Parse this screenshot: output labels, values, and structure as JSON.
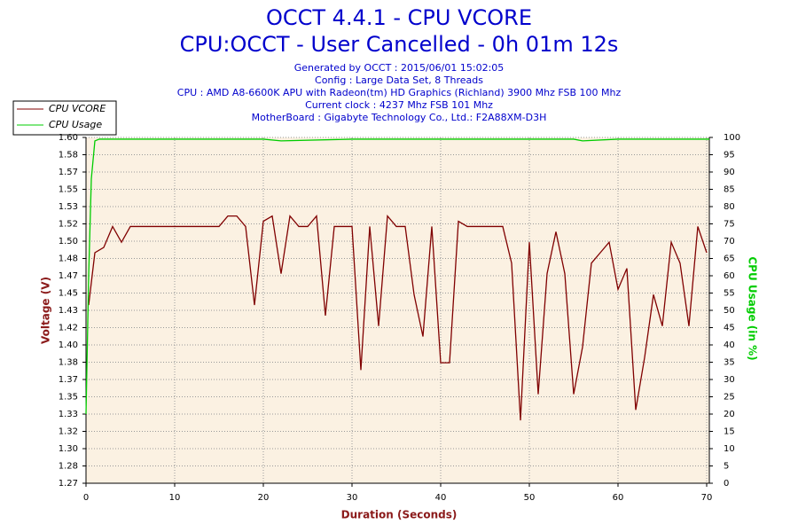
{
  "chart_data": {
    "type": "line",
    "title": [
      "OCCT 4.4.1 - CPU VCORE",
      "CPU:OCCT - User Cancelled - 0h 01m 12s"
    ],
    "subtitle": [
      "Generated by OCCT : 2015/06/01 15:02:05",
      "Config : Large Data Set, 8 Threads",
      "CPU : AMD A8-6600K APU with Radeon(tm) HD Graphics (Richland) 3900 Mhz FSB 100 Mhz",
      "Current clock : 4237 Mhz FSB 101 Mhz",
      "MotherBoard : Gigabyte Technology Co., Ltd.: F2A88XM-D3H"
    ],
    "xlabel": "Duration (Seconds)",
    "ylabel": "Voltage (V)",
    "y2label": "CPU Usage (in %)",
    "xlim": [
      0,
      70.3
    ],
    "xticks": [
      0,
      10,
      20,
      30,
      40,
      50,
      60,
      70
    ],
    "ylim": [
      1.27,
      1.6
    ],
    "yticks": [
      {
        "value": 1.27,
        "label": "1.27"
      },
      {
        "value": 1.2865,
        "label": "1.28"
      },
      {
        "value": 1.303,
        "label": "1.30"
      },
      {
        "value": 1.3195,
        "label": "1.32"
      },
      {
        "value": 1.336,
        "label": "1.33"
      },
      {
        "value": 1.3525,
        "label": "1.35"
      },
      {
        "value": 1.369,
        "label": "1.37"
      },
      {
        "value": 1.3855,
        "label": "1.38"
      },
      {
        "value": 1.402,
        "label": "1.40"
      },
      {
        "value": 1.4185,
        "label": "1.42"
      },
      {
        "value": 1.435,
        "label": "1.43"
      },
      {
        "value": 1.4515,
        "label": "1.45"
      },
      {
        "value": 1.468,
        "label": "1.47"
      },
      {
        "value": 1.4845,
        "label": "1.48"
      },
      {
        "value": 1.501,
        "label": "1.50"
      },
      {
        "value": 1.5175,
        "label": "1.52"
      },
      {
        "value": 1.534,
        "label": "1.53"
      },
      {
        "value": 1.5505,
        "label": "1.55"
      },
      {
        "value": 1.567,
        "label": "1.57"
      },
      {
        "value": 1.5835,
        "label": "1.58"
      },
      {
        "value": 1.6,
        "label": "1.60"
      }
    ],
    "y2lim": [
      0,
      100
    ],
    "y2ticks": [
      0,
      5,
      10,
      15,
      20,
      25,
      30,
      35,
      40,
      45,
      50,
      55,
      60,
      65,
      70,
      75,
      80,
      85,
      90,
      95,
      100
    ],
    "grid": true,
    "legend": "top-left",
    "series": [
      {
        "name": "CPU VCORE",
        "color": "#800000",
        "x": [
          0.3,
          1,
          2,
          3,
          4,
          5,
          6,
          10,
          15,
          16,
          17,
          18,
          19,
          20,
          21,
          22,
          23,
          24,
          25,
          26,
          27,
          28,
          29,
          30,
          31,
          32,
          33,
          34,
          35,
          36,
          37,
          38,
          39,
          40,
          41,
          42,
          43,
          47,
          48,
          49,
          50,
          51,
          52,
          53,
          54,
          55,
          56,
          57,
          58,
          59,
          60,
          61,
          62,
          63,
          64,
          65,
          66,
          67,
          68,
          69,
          70
        ],
        "values": [
          1.44,
          1.49,
          1.495,
          1.515,
          1.5,
          1.515,
          1.515,
          1.515,
          1.515,
          1.525,
          1.525,
          1.515,
          1.44,
          1.52,
          1.525,
          1.47,
          1.525,
          1.515,
          1.515,
          1.525,
          1.43,
          1.515,
          1.515,
          1.515,
          1.378,
          1.515,
          1.42,
          1.525,
          1.515,
          1.515,
          1.45,
          1.41,
          1.515,
          1.385,
          1.385,
          1.52,
          1.515,
          1.515,
          1.48,
          1.33,
          1.5,
          1.355,
          1.47,
          1.51,
          1.47,
          1.355,
          1.4,
          1.48,
          1.49,
          1.5,
          1.455,
          1.475,
          1.34,
          1.39,
          1.45,
          1.42,
          1.5,
          1.48,
          1.42,
          1.515,
          1.49
        ]
      },
      {
        "name": "CPU Usage",
        "color": "#00cc00",
        "axis": "y2",
        "x": [
          0,
          0.3,
          0.6,
          1,
          1.5,
          10,
          20,
          22,
          30,
          40,
          50,
          55,
          56,
          60,
          70,
          70.3
        ],
        "values": [
          20,
          60,
          88,
          99,
          99.5,
          99.5,
          99.5,
          99,
          99.5,
          99.5,
          99.5,
          99.5,
          99,
          99.5,
          99.5,
          99.5
        ]
      }
    ]
  }
}
